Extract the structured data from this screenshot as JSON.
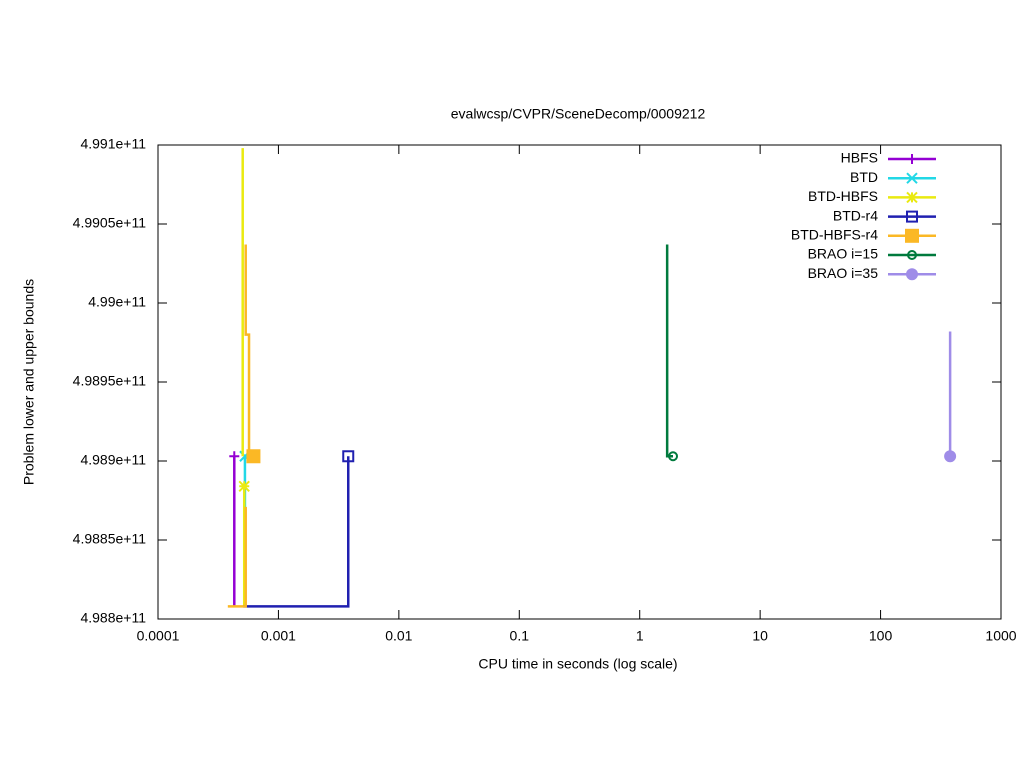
{
  "chart_data": {
    "type": "line",
    "title": "evalwcsp/CVPR/SceneDecomp/0009212",
    "x_label": "CPU time in seconds (log scale)",
    "y_label": "Problem lower and upper bounds",
    "x_scale": "log",
    "xlim": [
      0.0001,
      1000
    ],
    "xticks": [
      0.0001,
      0.001,
      0.01,
      0.1,
      1,
      10,
      100,
      1000
    ],
    "ylim": [
      498800000000,
      499100000000
    ],
    "yticks": [
      {
        "value": 498800000000,
        "label": "4.988e+11"
      },
      {
        "value": 498850000000,
        "label": "4.9885e+11"
      },
      {
        "value": 498900000000,
        "label": "4.989e+11"
      },
      {
        "value": 498950000000,
        "label": "4.9895e+11"
      },
      {
        "value": 499000000000,
        "label": "4.99e+11"
      },
      {
        "value": 499050000000,
        "label": "4.9905e+11"
      },
      {
        "value": 499100000000,
        "label": "4.991e+11"
      }
    ],
    "legend": "top right",
    "series": [
      {
        "name": "HBFS",
        "color": "#9400d3",
        "marker": "plus",
        "x": [
          0.00043,
          0.00043
        ],
        "values": [
          498808000000,
          498903000000
        ]
      },
      {
        "name": "BTD",
        "color": "#22d8e6",
        "marker": "cross",
        "x": [
          0.000527,
          0.000527
        ],
        "values": [
          498808000000,
          498903000000
        ]
      },
      {
        "name": "BTD-HBFS",
        "color": "#eaea10",
        "marker": "star",
        "x": [
          0.000505,
          0.000505,
          null,
          0.00052,
          0.00052
        ],
        "values": [
          499098000000,
          498903000000,
          null,
          498808000000,
          498884000000
        ]
      },
      {
        "name": "BTD-r4",
        "color": "#2020b0",
        "marker": "open-square",
        "x": [
          0.00051,
          0.0038,
          0.0038
        ],
        "values": [
          498808000000,
          498808000000,
          498903000000
        ]
      },
      {
        "name": "BTD-HBFS-r4",
        "color": "#fbb825",
        "marker": "filled-square",
        "x": [
          0.00038,
          0.000535,
          0.000535,
          null,
          0.000535,
          0.000535,
          0.00057,
          0.00057,
          0.00062
        ],
        "values": [
          498808000000,
          498808000000,
          498871000000,
          null,
          499037000000,
          498980000000,
          498980000000,
          498903000000,
          498903000000
        ]
      },
      {
        "name": "BRAO i=15",
        "color": "#007a3d",
        "marker": "open-circle",
        "x": [
          1.69,
          1.69,
          1.89
        ],
        "values": [
          499037000000,
          498903000000,
          498903000000
        ]
      },
      {
        "name": "BRAO i=35",
        "color": "#9f8ce8",
        "marker": "filled-circle",
        "x": [
          378,
          378
        ],
        "values": [
          498982000000,
          498903000000
        ]
      }
    ]
  }
}
